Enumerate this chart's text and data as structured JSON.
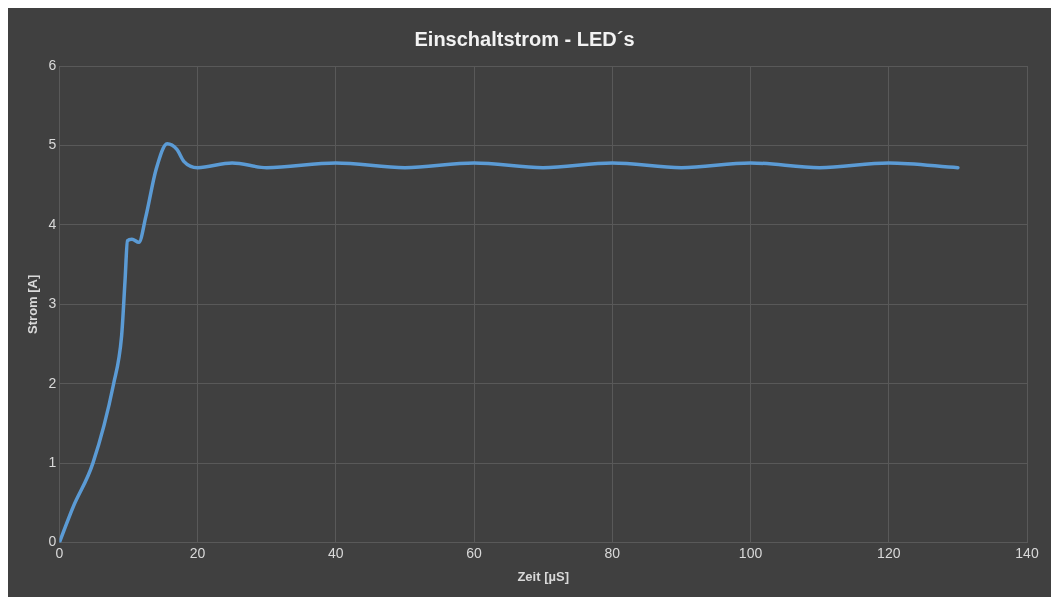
{
  "chart_data": {
    "type": "line",
    "title": "Einschaltstrom - LED´s",
    "xlabel": "Zeit [µS]",
    "ylabel": "Strom [A]",
    "x": [
      0,
      2,
      4.85,
      7.85,
      9,
      9.5,
      9.85,
      10.5,
      11.5,
      12.5,
      14,
      15.6,
      17,
      18,
      20,
      25,
      30,
      40,
      50,
      60,
      70,
      80,
      90,
      100,
      110,
      120,
      130
    ],
    "series": [
      {
        "color": "#5b9bd5",
        "values": [
          0,
          0.45,
          1.0,
          2.0,
          2.6,
          3.3,
          3.8,
          3.82,
          3.78,
          4.1,
          4.7,
          5.02,
          4.95,
          4.8,
          4.72,
          4.78,
          4.72,
          4.78,
          4.72,
          4.78,
          4.72,
          4.78,
          4.72,
          4.78,
          4.72,
          4.78,
          4.72
        ]
      }
    ],
    "xlim": [
      0,
      140
    ],
    "xticks": [
      0,
      20,
      40,
      60,
      80,
      100,
      120,
      140
    ],
    "ylim": [
      0,
      6
    ],
    "yticks": [
      0,
      1,
      2,
      3,
      4,
      5,
      6
    ],
    "grid": true,
    "legend": false,
    "marker": "none",
    "line_style": "solid"
  }
}
